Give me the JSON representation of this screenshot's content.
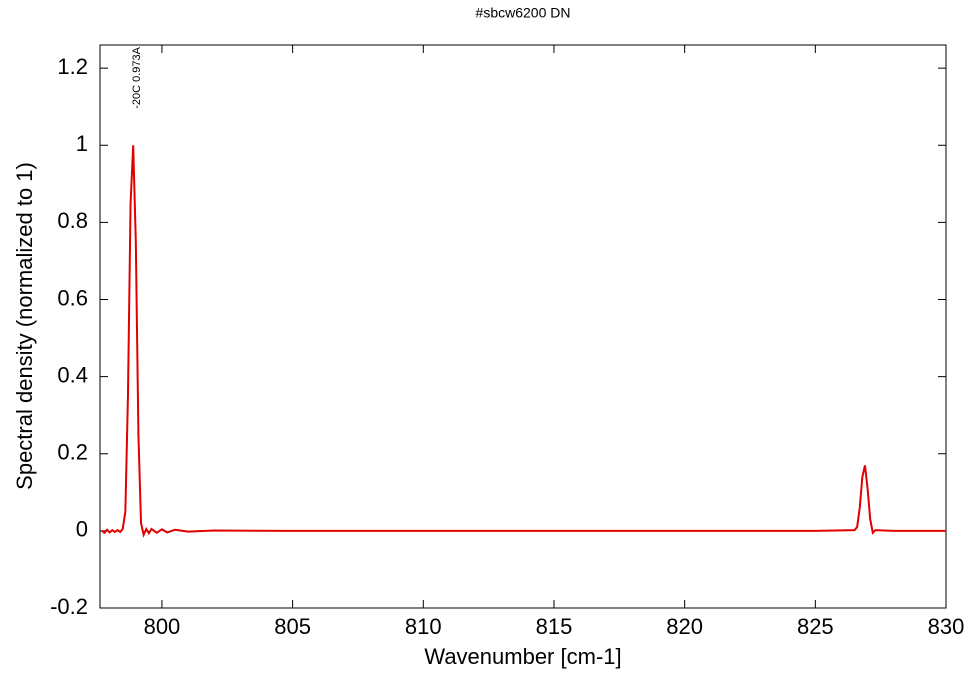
{
  "chart_data": {
    "type": "line",
    "title": "#sbcw6200 DN",
    "x_label": "Wavenumber [cm-1]",
    "y_label": "Spectral density (normalized to 1)",
    "annotation": "-20C 0.973A",
    "color": "#e00000",
    "x": [
      797.7,
      797.8,
      797.9,
      798.0,
      798.1,
      798.2,
      798.3,
      798.4,
      798.5,
      798.6,
      798.7,
      798.8,
      798.9,
      799.0,
      799.1,
      799.2,
      799.3,
      799.4,
      799.5,
      799.6,
      799.8,
      800.0,
      800.2,
      800.5,
      801,
      802,
      805,
      810,
      815,
      820,
      825,
      826.5,
      826.6,
      826.7,
      826.8,
      826.9,
      827.0,
      827.1,
      827.2,
      827.3,
      828,
      830
    ],
    "values": [
      0,
      -0.005,
      0.003,
      -0.004,
      0.002,
      -0.003,
      0.002,
      -0.003,
      0.005,
      0.05,
      0.35,
      0.85,
      1.0,
      0.75,
      0.25,
      0.02,
      -0.01,
      0.005,
      -0.006,
      0.005,
      -0.005,
      0.004,
      -0.004,
      0.003,
      -0.002,
      0.001,
      0,
      0,
      0,
      0,
      0,
      0.002,
      0.01,
      0.06,
      0.14,
      0.17,
      0.11,
      0.03,
      -0.005,
      0.002,
      0,
      0
    ],
    "xlim": [
      797.63,
      830
    ],
    "ylim": [
      -0.2,
      1.26
    ],
    "xticks": [
      800,
      805,
      810,
      815,
      820,
      825,
      830
    ],
    "yticks": [
      -0.2,
      0,
      0.2,
      0.4,
      0.6,
      0.8,
      1,
      1.2
    ]
  }
}
